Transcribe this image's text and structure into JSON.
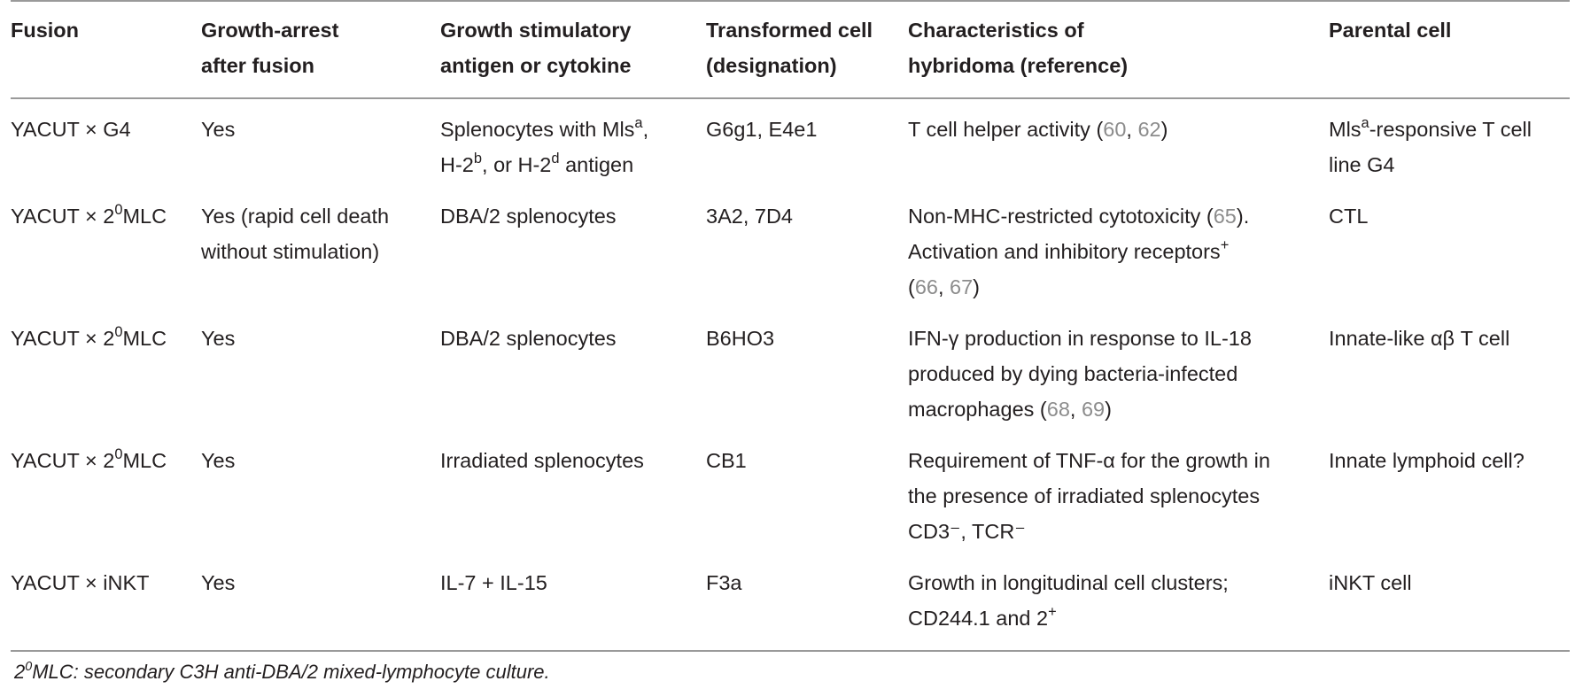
{
  "headers": {
    "fusion": "Fusion",
    "growth_arrest_l1": "Growth-arrest",
    "growth_arrest_l2": "after fusion",
    "stimulatory_l1": "Growth stimulatory",
    "stimulatory_l2": "antigen or cytokine",
    "transformed_l1": "Transformed cell",
    "transformed_l2": "(designation)",
    "characteristics_l1": "Characteristics of",
    "characteristics_l2": "hybridoma (reference)",
    "parental": "Parental cell"
  },
  "rows": [
    {
      "fusion_pre": "YACUT × G4",
      "arrest": "Yes",
      "stim_a": "Splenocytes with Mls",
      "stim_sup_a": "a",
      "stim_b": ",",
      "stim_c": "H-2",
      "stim_sup_b": "b",
      "stim_d": ", or H-2",
      "stim_sup_d": "d",
      "stim_e": " antigen",
      "transformed": "G6g1, E4e1",
      "char_text": "T cell helper activity (",
      "ref1": "60",
      "sep": ", ",
      "ref2": "62",
      "char_close": ")",
      "parental_a": "Mls",
      "parental_sup": "a",
      "parental_b": "-responsive T cell",
      "parental_c": "line G4"
    },
    {
      "fusion_pre": "YACUT × 2",
      "fusion_sup": "0",
      "fusion_post": "MLC",
      "arrest_a": "Yes (rapid cell death",
      "arrest_b": "without stimulation)",
      "stim": "DBA/2 splenocytes",
      "transformed": "3A2, 7D4",
      "char_a": "Non-MHC-restricted cytotoxicity (",
      "ref1": "65",
      "char_a_close": ").",
      "char_b": "Activation and inhibitory receptors",
      "char_b_sup": "+",
      "char_c_open": "(",
      "ref2": "66",
      "sep": ", ",
      "ref3": "67",
      "char_c_close": ")",
      "parental": "CTL"
    },
    {
      "fusion_pre": "YACUT × 2",
      "fusion_sup": "0",
      "fusion_post": "MLC",
      "arrest": "Yes",
      "stim": "DBA/2 splenocytes",
      "transformed": "B6HO3",
      "char_a": "IFN-γ production in response to IL-18",
      "char_b": "produced by dying bacteria-infected",
      "char_c": "macrophages (",
      "ref1": "68",
      "sep": ", ",
      "ref2": "69",
      "char_c_close": ")",
      "parental": "Innate-like αβ T cell"
    },
    {
      "fusion_pre": "YACUT × 2",
      "fusion_sup": "0",
      "fusion_post": "MLC",
      "arrest": "Yes",
      "stim": "Irradiated splenocytes",
      "transformed": "CB1",
      "char_a": "Requirement of TNF-α for the growth in",
      "char_b": "the presence of irradiated splenocytes",
      "char_c": "CD3⁻, TCR⁻",
      "parental": "Innate lymphoid cell?"
    },
    {
      "fusion_pre": "YACUT × iNKT",
      "arrest": "Yes",
      "stim": "IL-7 + IL-15",
      "transformed": "F3a",
      "char_a": "Growth in longitudinal cell clusters;",
      "char_b": "CD244.1 and 2",
      "char_b_sup": "+",
      "parental": "iNKT cell"
    }
  ],
  "footnote": {
    "sup": "2",
    "sup_small": "0",
    "text": "MLC: secondary C3H anti-DBA/2 mixed-lymphocyte culture."
  },
  "colors": {
    "text": "#231f20",
    "reference_link": "#8c8c8c",
    "rule": "#9a9a9a"
  }
}
